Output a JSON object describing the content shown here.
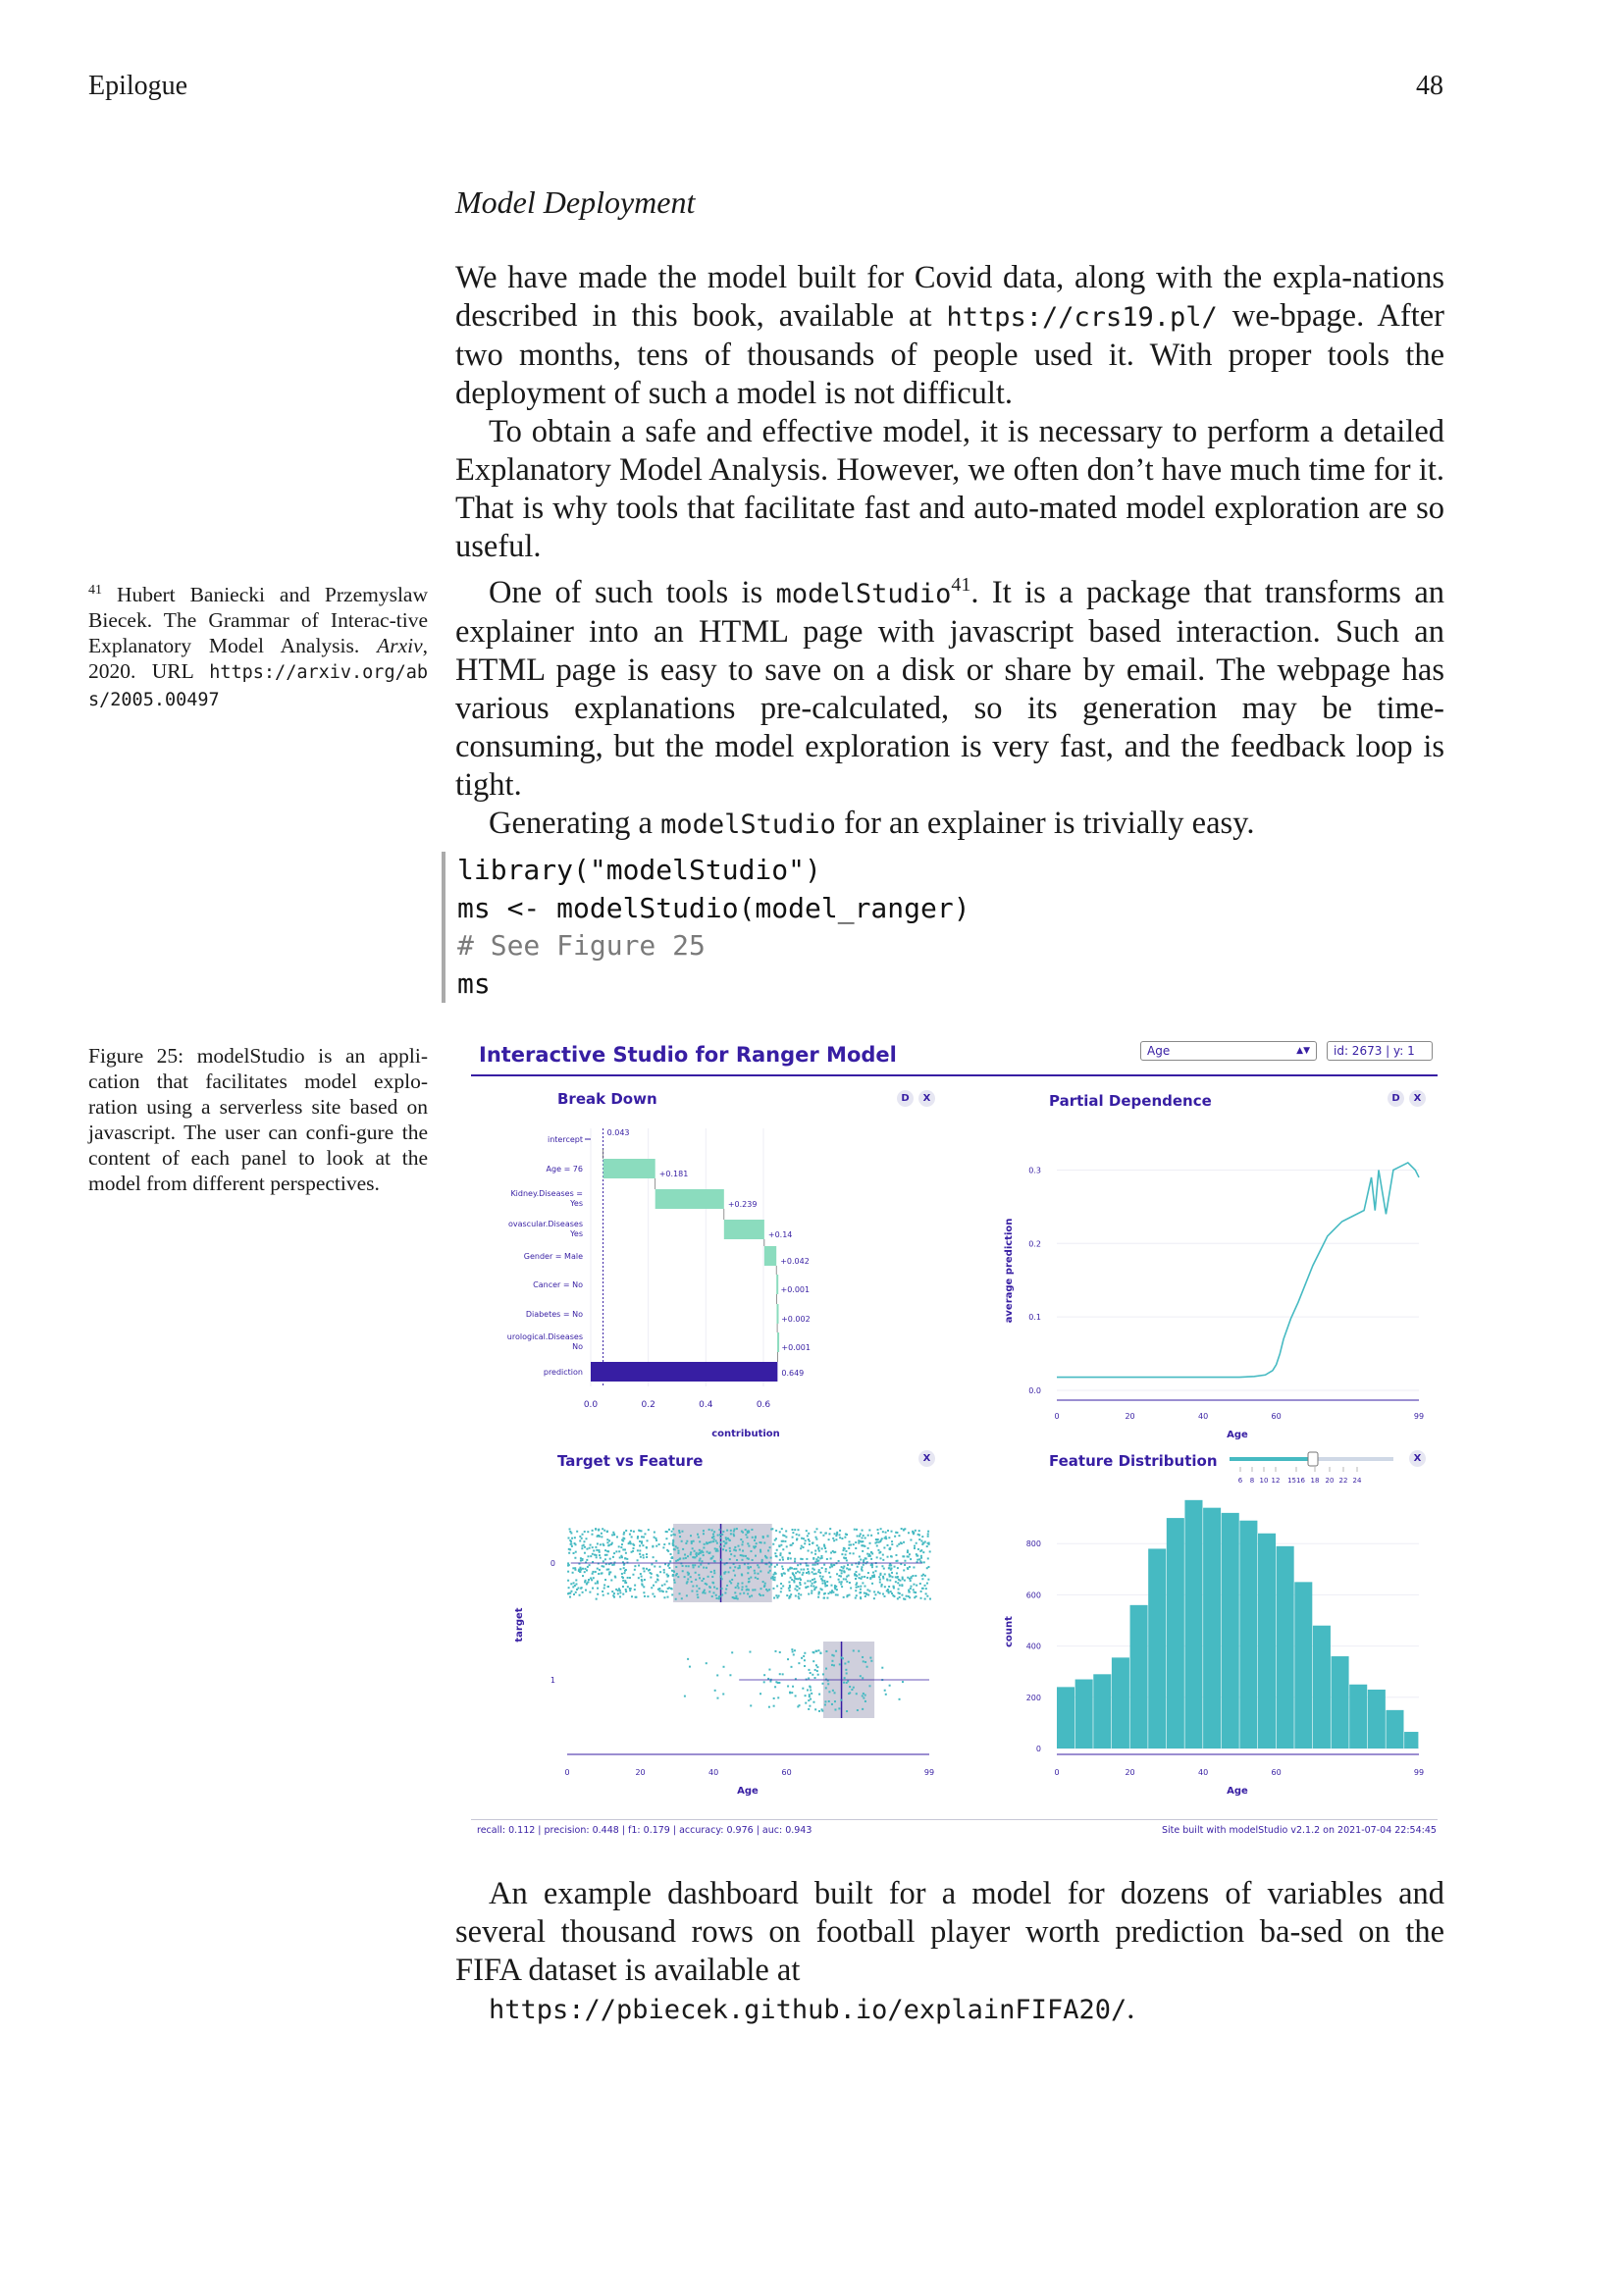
{
  "header": {
    "running_title": "Epilogue",
    "page_number": "48"
  },
  "section_title": "Model Deployment",
  "para1": {
    "before": "We have made the model built for Covid data, along with the expla-nations described in this book, available at ",
    "url": "https://crs19.pl/",
    "after": " we-bpage. After two months, tens of thousands of people used it. With proper tools the deployment of such a model is not difficult."
  },
  "para2": "To obtain a safe and effective model, it is necessary to perform a detailed Explanatory Model Analysis. However, we often don’t have much time for it. That is why tools that facilitate fast and auto-mated model exploration are so useful.",
  "para3": {
    "before": "One of such tools is ",
    "code": "modelStudio",
    "sup": "41",
    "after": ". It is a package that transforms an explainer into an HTML page with javascript based interaction. Such an HTML page is easy to save on a disk or share by email. The webpage has various explanations pre-calculated, so its generation may be time-consuming, but the model exploration is very fast, and the feedback loop is tight."
  },
  "para4": {
    "before": "Generating a ",
    "code": "modelStudio",
    "after": " for an explainer is trivially easy."
  },
  "code_lines": [
    "library(\"modelStudio\")",
    "ms <- modelStudio(model_ranger)",
    "# See Figure 25",
    "ms"
  ],
  "footnote": {
    "num": "41",
    "text": " Hubert Baniecki and Przemyslaw Biecek. The Grammar of Interac-tive Explanatory Model Analysis. ",
    "journal": "Arxiv",
    "rest": ", 2020. URL ",
    "url": "https://arxiv.org/abs/2005.00497"
  },
  "caption": "Figure 25: modelStudio is an appli-cation that facilitates model explo-ration using a serverless site based on javascript. The user can confi-gure the content of each panel to look at the model from different perspectives.",
  "dashboard": {
    "title": "Interactive Studio for Ranger Model",
    "variable_select": "Age",
    "obs_select": "id: 2673 | y: 1",
    "btn_d": "D",
    "btn_x": "X",
    "footer_left": "recall: 0.112 | precision: 0.448 | f1: 0.179 | accuracy: 0.976 | auc: 0.943",
    "footer_right": "Site built with modelStudio v2.1.2 on 2021-07-04 22:54:45",
    "colors": {
      "accent": "#371ea3",
      "teal": "#46bac2",
      "green": "#8bdcbe",
      "grey": "#c7c7d6"
    }
  },
  "chart_data": [
    {
      "type": "bar",
      "title": "Break Down",
      "xlabel": "contribution",
      "xlim": [
        0,
        0.7
      ],
      "xticks": [
        "0.0",
        "0.2",
        "0.4",
        "0.6"
      ],
      "categories": [
        "intercept",
        "Age = 76",
        "Kidney.Diseases = Yes",
        "Cardiovascular.Diseases = Yes",
        "Gender = Male",
        "Cancer = No",
        "Diabetes = No",
        "Neurological.Diseases = No",
        "prediction"
      ],
      "labels": [
        "intercept",
        "Age = 76",
        "Kidney.Diseases =",
        "ovascular.Diseases",
        "Gender = Male",
        "Cancer = No",
        "Diabetes = No",
        "urological.Diseases",
        "prediction"
      ],
      "label_second_lines": [
        "",
        "",
        "Yes",
        "Yes",
        "",
        "",
        "",
        "No",
        ""
      ],
      "values": [
        0.043,
        0.181,
        0.239,
        0.14,
        0.042,
        0.001,
        0.002,
        0.001,
        0.649
      ],
      "value_labels": [
        "0.043",
        "+0.181",
        "+0.239",
        "+0.14",
        "+0.042",
        "+0.001",
        "+0.002",
        "+0.001",
        "0.649"
      ]
    },
    {
      "type": "line",
      "title": "Partial Dependence",
      "xlabel": "Age",
      "ylabel": "average prediction",
      "xlim": [
        0,
        99
      ],
      "ylim": [
        0,
        0.33
      ],
      "xticks": [
        "0",
        "20",
        "40",
        "60",
        "99"
      ],
      "yticks": [
        "0.0",
        "0.1",
        "0.2",
        "0.3"
      ],
      "x": [
        0,
        10,
        20,
        30,
        40,
        50,
        54,
        57,
        59,
        60,
        61,
        62,
        64,
        66,
        68,
        70,
        72,
        74,
        76,
        78,
        80,
        82,
        84,
        86,
        87,
        88,
        90,
        92,
        94,
        96,
        98,
        99
      ],
      "y": [
        0.018,
        0.018,
        0.018,
        0.018,
        0.018,
        0.018,
        0.019,
        0.021,
        0.027,
        0.035,
        0.05,
        0.07,
        0.098,
        0.12,
        0.145,
        0.17,
        0.19,
        0.21,
        0.22,
        0.23,
        0.235,
        0.24,
        0.245,
        0.29,
        0.245,
        0.3,
        0.24,
        0.3,
        0.305,
        0.31,
        0.3,
        0.29
      ]
    },
    {
      "type": "scatter",
      "title": "Target vs Feature",
      "xlabel": "Age",
      "ylabel": "target",
      "xlim": [
        0,
        99
      ],
      "xticks": [
        "0",
        "20",
        "40",
        "60",
        "99"
      ],
      "categories": [
        "0",
        "1"
      ],
      "boxplots": [
        {
          "target": "0",
          "q1": 29,
          "median": 42,
          "q3": 56
        },
        {
          "target": "1",
          "q1": 70,
          "median": 75,
          "q3": 84
        }
      ]
    },
    {
      "type": "bar",
      "title": "Feature Distribution",
      "xlabel": "Age",
      "ylabel": "count",
      "xlim": [
        0,
        99
      ],
      "ylim": [
        0,
        1000
      ],
      "xticks": [
        "0",
        "20",
        "40",
        "60",
        "99"
      ],
      "yticks": [
        "0",
        "200",
        "400",
        "600",
        "800"
      ],
      "bin_width": 5,
      "values": [
        240,
        270,
        290,
        355,
        560,
        780,
        900,
        970,
        940,
        920,
        890,
        840,
        790,
        650,
        480,
        360,
        250,
        230,
        150,
        65
      ],
      "slider_ticks": [
        "6",
        "8",
        "10",
        "12",
        "1516",
        "18",
        "20",
        "22",
        "24"
      ]
    }
  ],
  "para5": "An example dashboard built for a model for dozens of variables and several thousand rows on football player worth prediction ba-sed on the FIFA dataset is available at",
  "link": "https://pbiecek.github.io/explainFIFA20/",
  "link_suffix": "."
}
